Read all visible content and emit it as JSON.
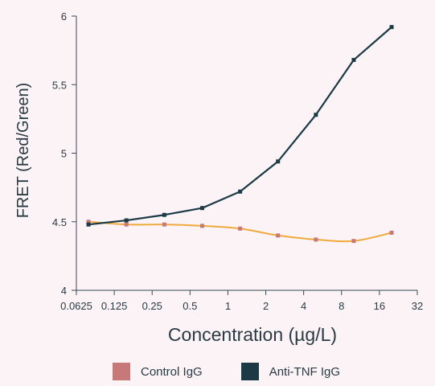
{
  "chart_data": {
    "type": "line",
    "title": "",
    "xlabel": "Concentration (µg/L)",
    "ylabel": "FRET (Red/Green)",
    "x_scale": "log2",
    "x_ticks": [
      0.0625,
      0.125,
      0.25,
      0.5,
      1,
      2,
      4,
      8,
      16,
      32
    ],
    "x_tick_labels": [
      "0.0625",
      "0.125",
      "0.25",
      "0.5",
      "1",
      "2",
      "4",
      "8",
      "16",
      "32"
    ],
    "xlim": [
      0.0625,
      32
    ],
    "y_ticks": [
      4,
      4.5,
      5,
      5.5,
      6
    ],
    "y_tick_labels": [
      "4",
      "4.5",
      "5",
      "5.5",
      "6"
    ],
    "ylim": [
      4,
      6
    ],
    "grid": false,
    "legend_position": "bottom",
    "series": [
      {
        "name": "Control IgG",
        "line_color": "#f0aa3c",
        "marker_color": "#c77878",
        "legend_color": "#c77878",
        "x": [
          0.078,
          0.156,
          0.3125,
          0.625,
          1.25,
          2.5,
          5,
          10,
          20
        ],
        "y": [
          4.5,
          4.48,
          4.48,
          4.47,
          4.45,
          4.4,
          4.37,
          4.36,
          4.42
        ]
      },
      {
        "name": "Anti-TNF IgG",
        "line_color": "#1b3a46",
        "marker_color": "#1b3a46",
        "legend_color": "#1b3a46",
        "x": [
          0.078,
          0.156,
          0.3125,
          0.625,
          1.25,
          2.5,
          5,
          10,
          20
        ],
        "y": [
          4.48,
          4.51,
          4.55,
          4.6,
          4.72,
          4.94,
          5.28,
          5.68,
          5.92
        ]
      }
    ]
  }
}
